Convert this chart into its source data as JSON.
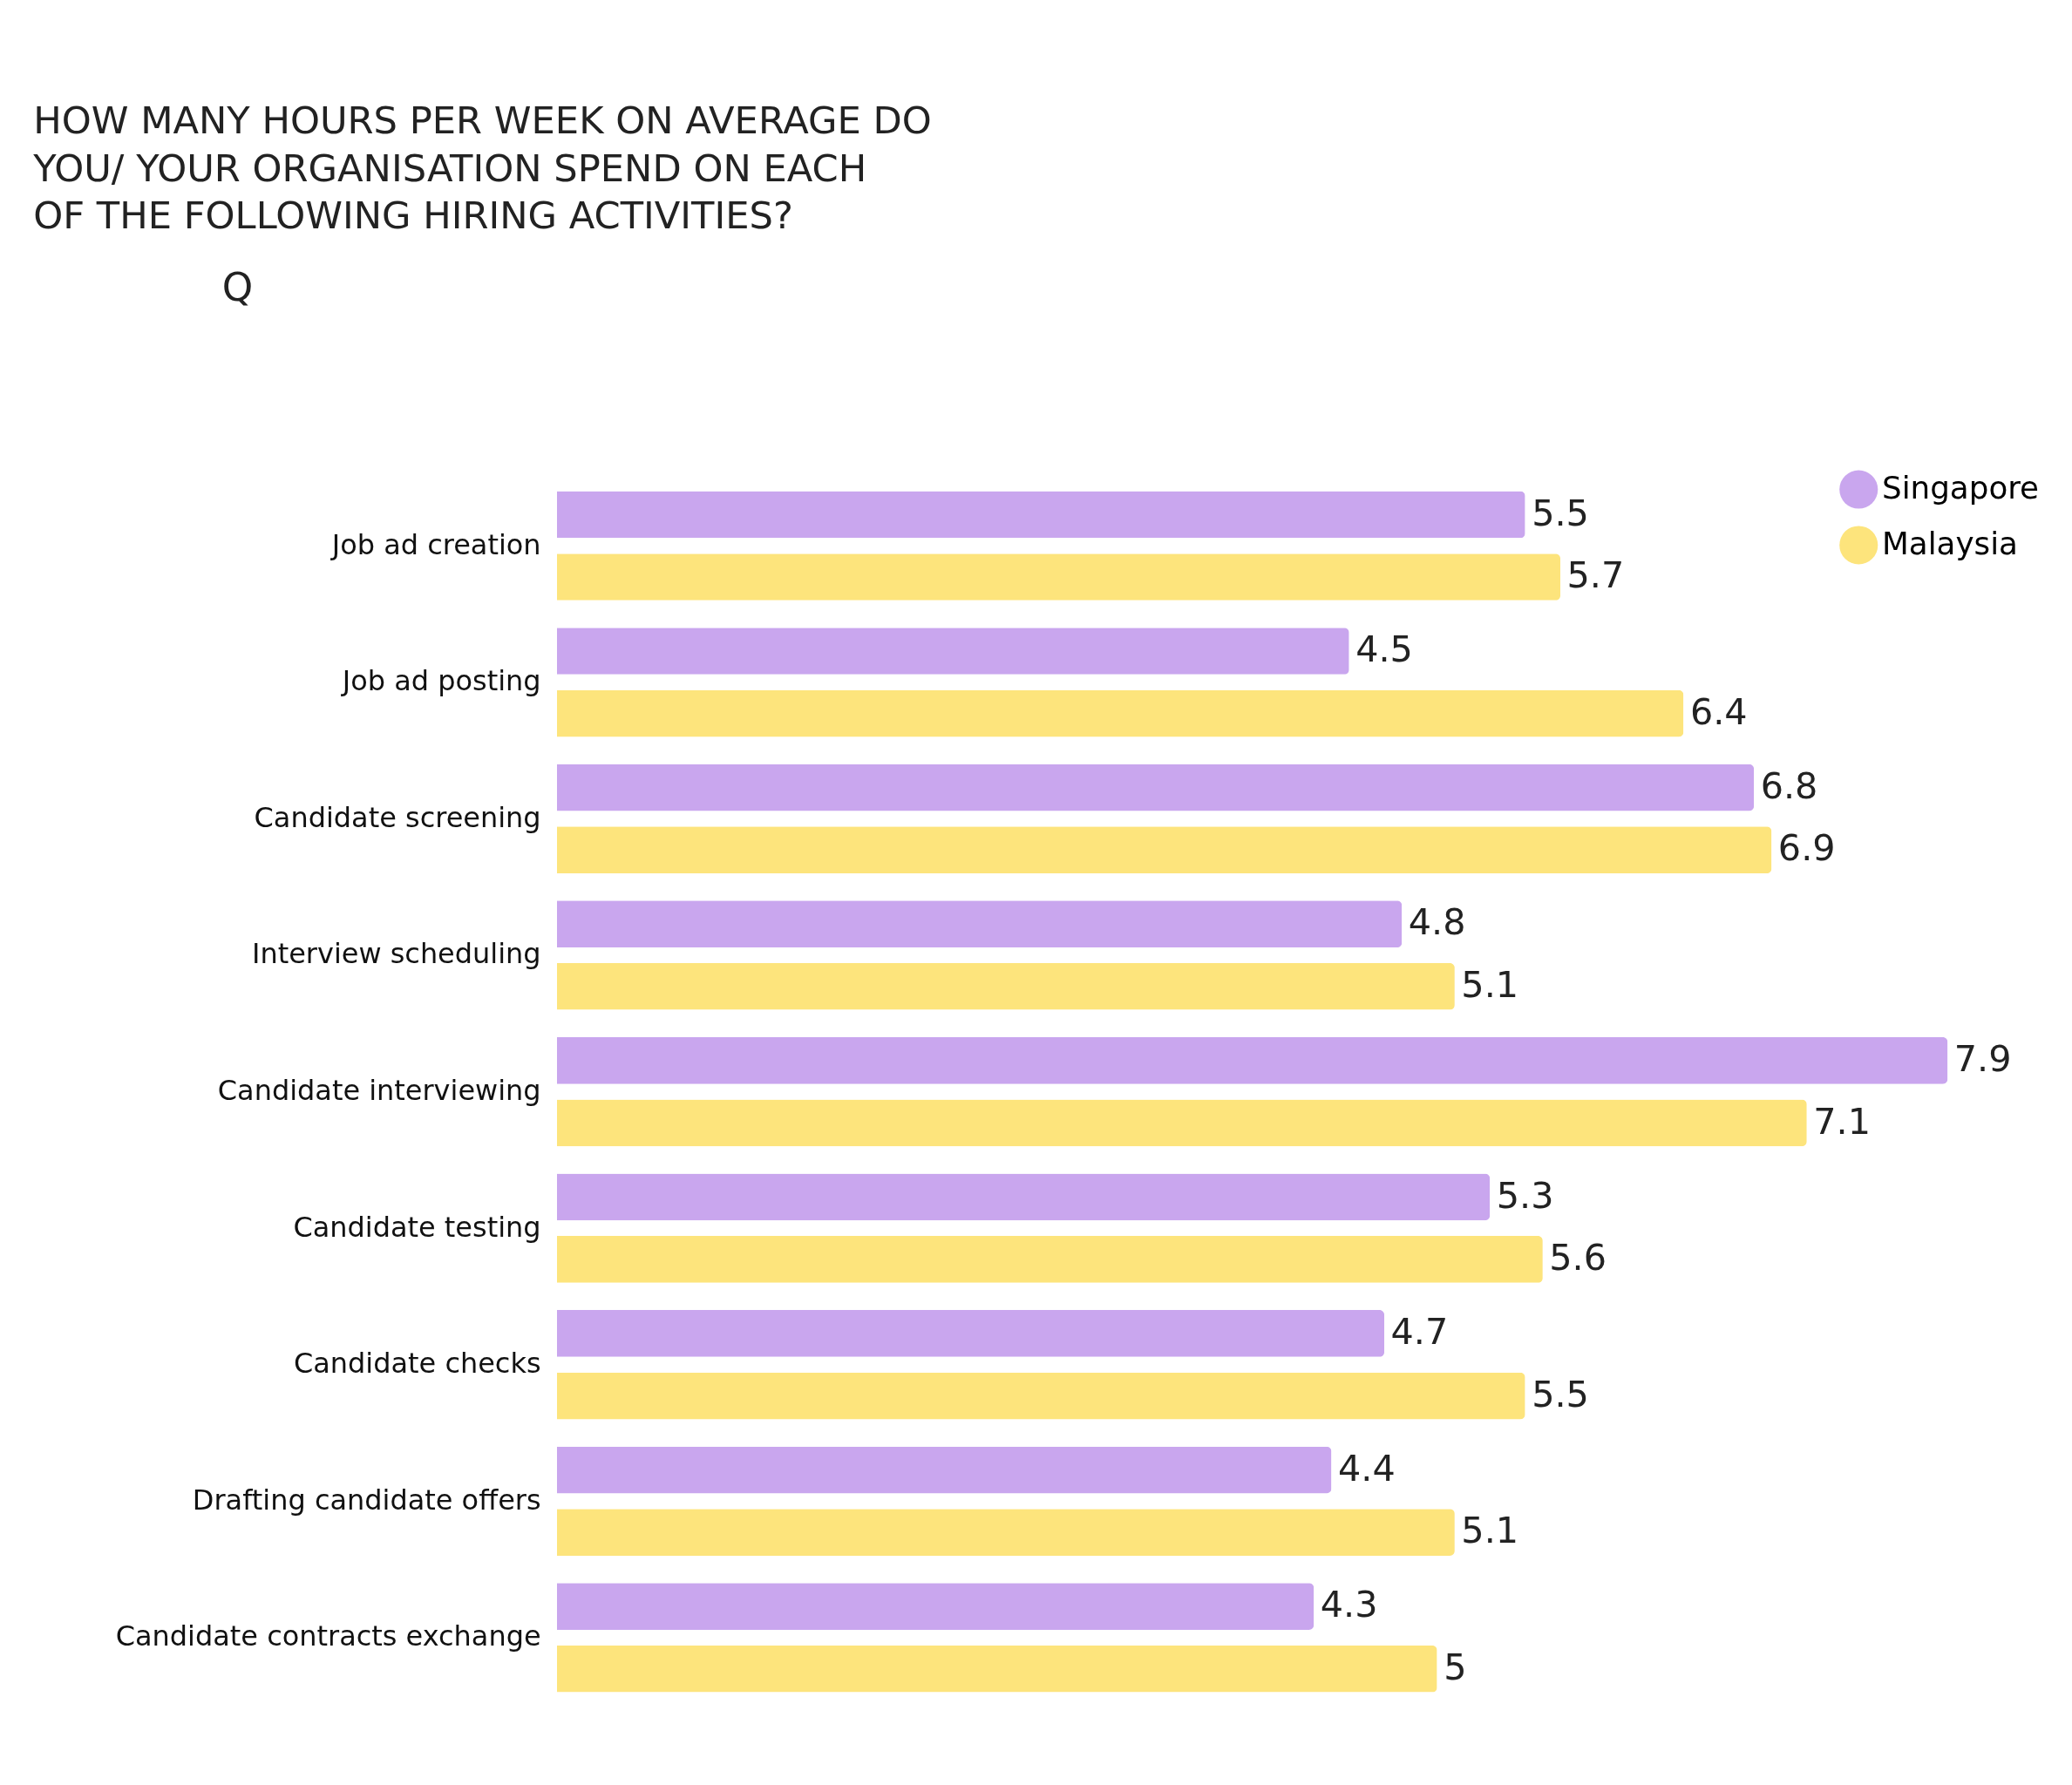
{
  "chart_data": {
    "type": "bar",
    "orientation": "horizontal",
    "title": "HOW MANY HOURS PER WEEK ON AVERAGE DO YOU/ YOUR ORGANISATION SPEND ON EACH OF THE FOLLOWING HIRING ACTIVITIES?",
    "categories": [
      "Job ad creation",
      "Job ad posting",
      "Candidate screening",
      "Interview scheduling",
      "Candidate interviewing",
      "Candidate testing",
      "Candidate checks",
      "Drafting candidate offers",
      "Candidate contracts exchange"
    ],
    "series": [
      {
        "name": "Singapore",
        "color": "#c9a6ee",
        "values": [
          5.5,
          4.5,
          6.8,
          4.8,
          7.9,
          5.3,
          4.7,
          4.4,
          4.3
        ]
      },
      {
        "name": "Malaysia",
        "color": "#fde47c",
        "values": [
          5.7,
          6.4,
          6.9,
          5.1,
          7.1,
          5.6,
          5.5,
          5.1,
          5
        ]
      }
    ],
    "data_labels": true,
    "legend": "top right",
    "annotations": [
      "Q"
    ]
  }
}
